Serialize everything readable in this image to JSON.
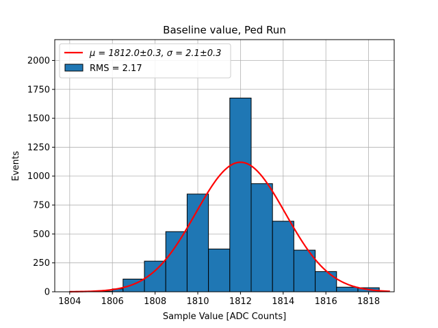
{
  "chart_data": {
    "type": "bar",
    "title": "Baseline value, Ped Run",
    "xlabel": "Sample Value [ADC Counts]",
    "ylabel": "Events",
    "xlim": [
      1803.3,
      1819.2
    ],
    "ylim": [
      0,
      2180
    ],
    "xticks": [
      1804,
      1806,
      1808,
      1810,
      1812,
      1814,
      1816,
      1818
    ],
    "xtick_labels": [
      "1804",
      "1806",
      "1808",
      "1810",
      "1812",
      "1814",
      "1816",
      "1818"
    ],
    "yticks": [
      0,
      250,
      500,
      750,
      1000,
      1250,
      1500,
      1750,
      2000
    ],
    "ytick_labels": [
      "0",
      "250",
      "500",
      "750",
      "1000",
      "1250",
      "1500",
      "1750",
      "2000"
    ],
    "grid": true,
    "legend_placement": "top-left",
    "histogram": {
      "name": "RMS = 2.17",
      "bin_edges": [
        1804.0,
        1805.0,
        1806.0,
        1806.5,
        1807.5,
        1808.5,
        1809.5,
        1810.5,
        1811.5,
        1812.5,
        1813.5,
        1814.5,
        1815.5,
        1816.5,
        1817.5,
        1818.5
      ],
      "counts": [
        3,
        5,
        25,
        110,
        265,
        520,
        845,
        370,
        1675,
        935,
        610,
        360,
        175,
        40,
        35
      ],
      "color": "#1f77b4",
      "edgecolor": "#000000"
    },
    "fit": {
      "type": "gaussian",
      "label_mu_part": "μ = 1812.0±0.3, ",
      "label_sigma_part": "σ = 2.1±0.3",
      "mu": 1812.0,
      "sigma": 2.1,
      "amplitude": 1120,
      "x_range": [
        1804,
        1819
      ],
      "color": "#ff0000"
    }
  }
}
